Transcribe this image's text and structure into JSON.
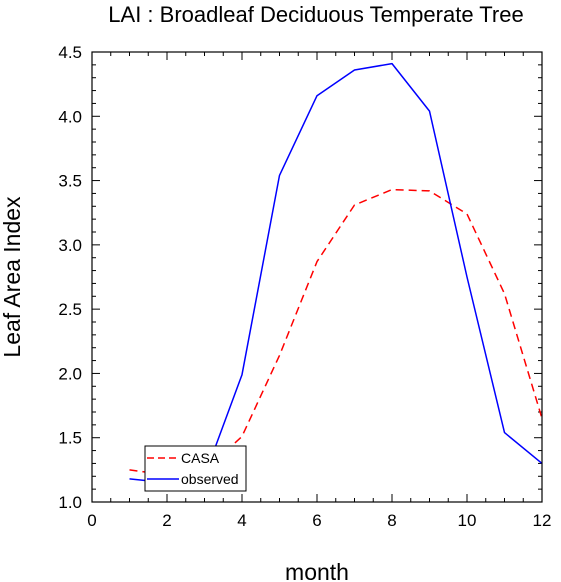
{
  "chart_data": {
    "type": "line",
    "title": "LAI : Broadleaf Deciduous Temperate Tree",
    "xlabel": "month",
    "ylabel": "Leaf Area Index",
    "xlim": [
      0,
      12
    ],
    "ylim": [
      1.0,
      4.5
    ],
    "xticks": [
      0,
      2,
      4,
      6,
      8,
      10,
      12
    ],
    "xtick_labels": [
      "0",
      "2",
      "4",
      "6",
      "8",
      "10",
      "12"
    ],
    "yticks": [
      1.0,
      1.5,
      2.0,
      2.5,
      3.0,
      3.5,
      4.0,
      4.5
    ],
    "ytick_labels": [
      "1.0",
      "1.5",
      "2.0",
      "2.5",
      "3.0",
      "3.5",
      "4.0",
      "4.5"
    ],
    "grid": false,
    "legend_position": "bottom-left",
    "x": [
      1,
      2,
      3,
      4,
      5,
      6,
      7,
      8,
      9,
      10,
      11,
      12
    ],
    "series": [
      {
        "name": "CASA",
        "color": "#ff0000",
        "dash": "dashed",
        "values": [
          1.25,
          1.21,
          1.24,
          1.51,
          2.14,
          2.87,
          3.31,
          3.43,
          3.42,
          3.24,
          2.62,
          1.65
        ]
      },
      {
        "name": "observed",
        "color": "#0000ff",
        "dash": "solid",
        "values": [
          1.18,
          1.15,
          1.2,
          1.99,
          3.54,
          4.16,
          4.36,
          4.41,
          4.04,
          2.75,
          1.54,
          1.3
        ]
      }
    ]
  }
}
